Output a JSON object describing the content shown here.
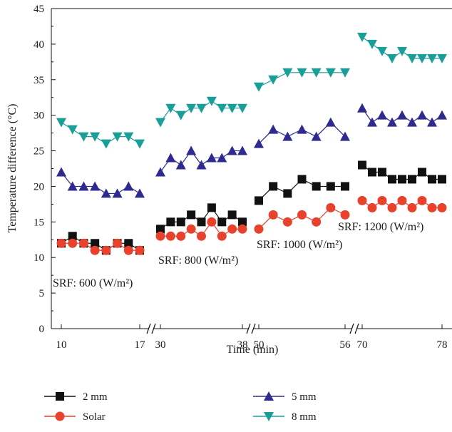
{
  "chart_data": {
    "type": "line",
    "xlabel": "Time (min)",
    "ylabel": "Temperature difference (°C)",
    "ylim": [
      0,
      45
    ],
    "yticks": [
      0,
      5,
      10,
      15,
      20,
      25,
      30,
      35,
      40,
      45
    ],
    "grid": false,
    "axis_break": true,
    "legend_position": "bottom",
    "segments": [
      {
        "annotation": "SRF: 600 (W/m²)",
        "x_range": [
          10,
          17
        ],
        "tick_labels": [
          "10",
          "17"
        ],
        "x": [
          10,
          11,
          12,
          13,
          14,
          15,
          16,
          17
        ],
        "series": {
          "2mm": [
            12,
            13,
            12,
            12,
            11,
            12,
            12,
            11
          ],
          "Solar": [
            12,
            12,
            12,
            11,
            11,
            12,
            11,
            11
          ],
          "5mm": [
            22,
            20,
            20,
            20,
            19,
            19,
            20,
            19
          ],
          "8mm": [
            29,
            28,
            27,
            27,
            26,
            27,
            27,
            26
          ]
        }
      },
      {
        "annotation": "SRF: 800 (W/m²)",
        "x_range": [
          30,
          38
        ],
        "tick_labels": [
          "30",
          "38"
        ],
        "x": [
          30,
          31,
          32,
          33,
          34,
          35,
          36,
          37,
          38
        ],
        "series": {
          "2mm": [
            14,
            15,
            15,
            16,
            15,
            17,
            15,
            16,
            15
          ],
          "Solar": [
            13,
            13,
            13,
            14,
            13,
            15,
            13,
            14,
            14
          ],
          "5mm": [
            22,
            24,
            23,
            25,
            23,
            24,
            24,
            25,
            25
          ],
          "8mm": [
            29,
            31,
            30,
            31,
            31,
            32,
            31,
            31,
            31
          ]
        }
      },
      {
        "annotation": "SRF: 1000 (W/m²)",
        "x_range": [
          50,
          56
        ],
        "tick_labels": [
          "50",
          "56"
        ],
        "x": [
          50,
          51,
          52,
          53,
          54,
          55,
          56
        ],
        "series": {
          "2mm": [
            18,
            20,
            19,
            21,
            20,
            20,
            20
          ],
          "Solar": [
            14,
            16,
            15,
            16,
            15,
            17,
            16
          ],
          "5mm": [
            26,
            28,
            27,
            28,
            27,
            29,
            27
          ],
          "8mm": [
            34,
            35,
            36,
            36,
            36,
            36,
            36
          ]
        }
      },
      {
        "annotation": "SRF: 1200 (W/m²)",
        "x_range": [
          70,
          78
        ],
        "tick_labels": [
          "70",
          "78"
        ],
        "x": [
          70,
          71,
          72,
          73,
          74,
          75,
          76,
          77,
          78
        ],
        "series": {
          "2mm": [
            23,
            22,
            22,
            21,
            21,
            21,
            22,
            21,
            21
          ],
          "Solar": [
            18,
            17,
            18,
            17,
            18,
            17,
            18,
            17,
            17
          ],
          "5mm": [
            31,
            29,
            30,
            29,
            30,
            29,
            30,
            29,
            30
          ],
          "8mm": [
            41,
            40,
            39,
            38,
            39,
            38,
            38,
            38,
            38
          ]
        }
      }
    ],
    "legend": [
      {
        "key": "2mm",
        "label": "2 mm",
        "color": "#111111",
        "marker": "square"
      },
      {
        "key": "Solar",
        "label": "Solar",
        "color": "#e8412c",
        "marker": "circle"
      },
      {
        "key": "5mm",
        "label": "5 mm",
        "color": "#2e2a8f",
        "marker": "triangle-up"
      },
      {
        "key": "8mm",
        "label": "8 mm",
        "color": "#1a9e98",
        "marker": "triangle-down"
      }
    ]
  }
}
